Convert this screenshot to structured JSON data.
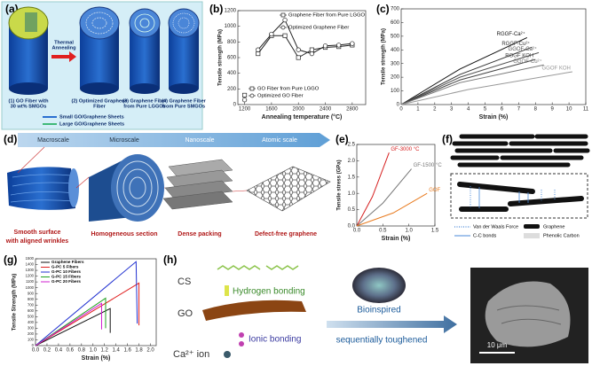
{
  "chart_data": [
    {
      "type": "line",
      "label": "(b)",
      "xlabel": "Annealing temperature (°C)",
      "ylabel": "Tensile strength (MPa)",
      "xlim": [
        1100,
        3000
      ],
      "xticks": [
        1200,
        1600,
        2000,
        2400,
        2800
      ],
      "ylim": [
        0,
        1200
      ],
      "yticks": [
        0,
        200,
        400,
        600,
        800,
        1000,
        1200
      ],
      "legend": "split",
      "series": [
        {
          "name": "Graphene Fiber from Pure LGGO",
          "color": "#222222",
          "marker": "square",
          "x": [
            1400,
            1600,
            1800,
            2000,
            2200,
            2400,
            2600,
            2800
          ],
          "values": [
            650,
            880,
            880,
            600,
            700,
            730,
            740,
            760
          ]
        },
        {
          "name": "Optimized Graphene Fiber",
          "color": "#222222",
          "marker": "circle",
          "x": [
            1400,
            1600,
            1800,
            2000,
            2200,
            2400,
            2600,
            2800
          ],
          "values": [
            700,
            900,
            1080,
            700,
            650,
            750,
            760,
            780
          ]
        },
        {
          "name": "GO Fiber from Pure LGGO",
          "color": "#222222",
          "marker": "square",
          "x": [
            1200
          ],
          "values": [
            120
          ]
        },
        {
          "name": "Optimized GO Fiber",
          "color": "#222222",
          "marker": "circle",
          "x": [
            1200
          ],
          "values": [
            60
          ]
        }
      ]
    },
    {
      "type": "line",
      "label": "(c)",
      "xlabel": "Strain (%)",
      "ylabel": "Tensile strength (MPa)",
      "xlim": [
        0,
        11
      ],
      "xticks": [
        0,
        1,
        2,
        3,
        4,
        5,
        6,
        7,
        8,
        9,
        10,
        11
      ],
      "ylim": [
        0,
        700
      ],
      "yticks": [
        0,
        100,
        200,
        300,
        400,
        500,
        600,
        700
      ],
      "legend": "inline",
      "series": [
        {
          "name": "RGGF-Ca²⁺",
          "color": "#111111",
          "x": [
            0,
            3.5,
            7.5
          ],
          "values": [
            0,
            260,
            490
          ]
        },
        {
          "name": "RGGF-Cu²⁺",
          "color": "#333333",
          "x": [
            0,
            3.5,
            7.8
          ],
          "values": [
            0,
            220,
            420
          ]
        },
        {
          "name": "GGOF-Ca²⁺",
          "color": "#555555",
          "x": [
            0,
            3.5,
            8.2
          ],
          "values": [
            0,
            200,
            380
          ]
        },
        {
          "name": "RGGF KOH",
          "color": "#444444",
          "x": [
            0,
            3.5,
            8.0
          ],
          "values": [
            0,
            180,
            330
          ]
        },
        {
          "name": "GGOF-Cu²⁺",
          "color": "#777777",
          "x": [
            0,
            3.5,
            8.5
          ],
          "values": [
            0,
            160,
            290
          ]
        },
        {
          "name": "GGOF KOH",
          "color": "#999999",
          "x": [
            0,
            4,
            10.2
          ],
          "values": [
            0,
            110,
            240
          ]
        }
      ]
    },
    {
      "type": "line",
      "label": "(e)",
      "xlabel": "Strain (%)",
      "ylabel": "Tensile stress (GPa)",
      "xlim": [
        0,
        1.5
      ],
      "xticks": [
        {
          "value": 0,
          "label": "0.0"
        },
        0.5,
        {
          "value": 1,
          "label": "1.0"
        },
        1.5
      ],
      "ylim": [
        0,
        2.5
      ],
      "yticks": [
        {
          "value": 0,
          "label": "0.0"
        },
        0.5,
        {
          "value": 1,
          "label": "1.0"
        },
        1.5,
        {
          "value": 2,
          "label": "2.0"
        },
        2.5
      ],
      "legend": "inline",
      "series": [
        {
          "name": "GF-3000 °C",
          "color": "#d62020",
          "x": [
            0,
            0.3,
            0.62
          ],
          "values": [
            0,
            0.9,
            2.25
          ]
        },
        {
          "name": "GF-1500 °C",
          "color": "#777777",
          "x": [
            0,
            0.5,
            1.05
          ],
          "values": [
            0,
            0.7,
            1.75
          ]
        },
        {
          "name": "GOF",
          "color": "#e87a1e",
          "x": [
            0,
            0.7,
            1.35
          ],
          "values": [
            0,
            0.4,
            1.0
          ]
        }
      ]
    },
    {
      "type": "line",
      "label": "(g)",
      "xlabel": "Strain (%)",
      "ylabel": "Tensile Strength (MPa)",
      "xlim": [
        0,
        2.1
      ],
      "xticks": [
        {
          "value": 0,
          "label": "0.0"
        },
        0.2,
        0.4,
        0.6,
        0.8,
        {
          "value": 1,
          "label": "1.0"
        },
        1.2,
        1.4,
        1.6,
        1.8,
        {
          "value": 2,
          "label": "2.0"
        }
      ],
      "ylim": [
        0,
        1500
      ],
      "yticks": [
        0,
        100,
        200,
        300,
        400,
        500,
        600,
        700,
        800,
        900,
        1000,
        1100,
        1200,
        1300,
        1400,
        1500
      ],
      "legend": "upper left",
      "series": [
        {
          "name": "Graphene Fibers",
          "color": "#111111",
          "x": [
            0,
            1.3,
            1.3
          ],
          "values": [
            0,
            640,
            220
          ]
        },
        {
          "name": "G-PC 5 Fibers",
          "color": "#e02020",
          "x": [
            0,
            1.8,
            1.8
          ],
          "values": [
            0,
            1080,
            350
          ]
        },
        {
          "name": "G-PC 10 Fibers",
          "color": "#2030d0",
          "x": [
            0,
            1.75,
            1.77
          ],
          "values": [
            0,
            1450,
            380
          ]
        },
        {
          "name": "G-PC 15 Fibers",
          "color": "#20a020",
          "x": [
            0,
            1.22,
            1.22
          ],
          "values": [
            0,
            820,
            300
          ]
        },
        {
          "name": "G-PC 20 Fibers",
          "color": "#d020d0",
          "x": [
            0,
            1.15,
            1.15
          ],
          "values": [
            0,
            730,
            280
          ]
        }
      ]
    }
  ],
  "figures": {
    "a": {
      "label": "(a)",
      "arrow": [
        "Thermal",
        "Annealing"
      ],
      "captions": [
        [
          "(1) GO Fiber with",
          "30 wt% SMGOs"
        ],
        [
          "(2) Optimized Graphene",
          "Fiber"
        ],
        [
          "(3) Graphene Fiber",
          "from Pure LGGOs"
        ],
        [
          "(4) Graphene Fiber",
          "from Pure SMGOs"
        ]
      ],
      "legend": [
        "Small GO/Graphene Sheets",
        "Large GO/Graphene Sheets"
      ]
    },
    "d": {
      "label": "(d)",
      "scales": [
        "Macroscale",
        "Microscale",
        "Nanoscale",
        "Atomic scale"
      ],
      "captions": [
        [
          "Smooth surface",
          "with aligned wrinkles"
        ],
        [
          "Homogeneous section"
        ],
        [
          "Dense packing"
        ],
        [
          "Defect-free graphene"
        ]
      ]
    },
    "f": {
      "label": "(f)",
      "legend": [
        "Van der Waals Force",
        "Graphene",
        "C-C bonds",
        "Phenolic Carbon"
      ]
    },
    "h": {
      "label": "(h)",
      "cs": "CS",
      "hbond": "Hydrogen bonding",
      "go": "GO",
      "ionic": "Ionic bonding",
      "ion": "Ca²⁺ ion",
      "bio": "Bioinspired",
      "tough": "sequentially toughened",
      "scale": "10 μm"
    }
  }
}
